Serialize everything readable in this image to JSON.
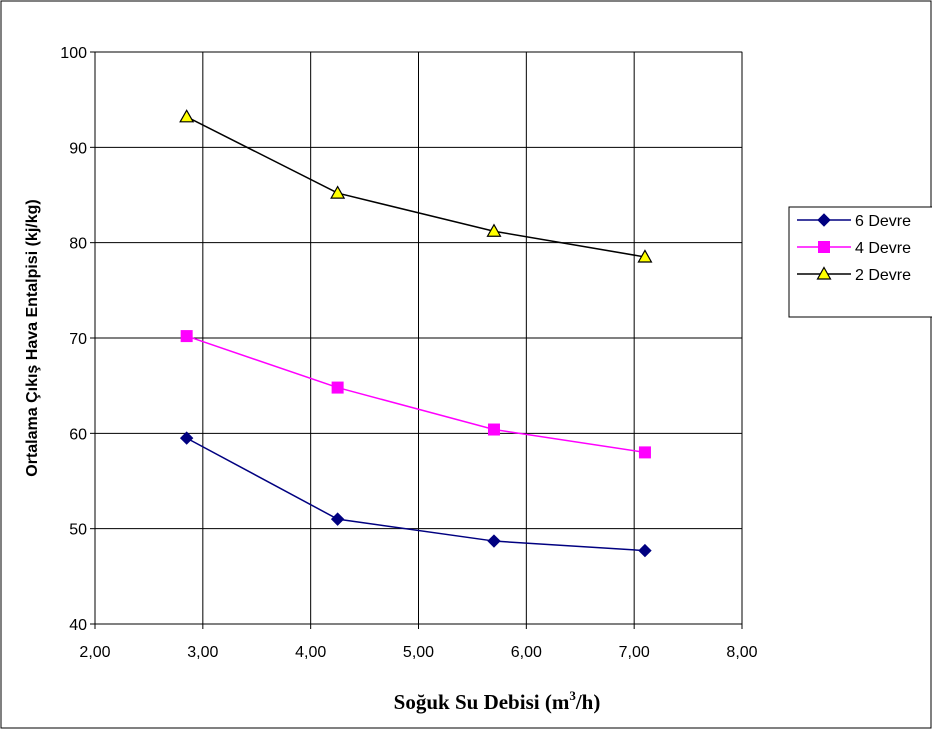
{
  "chart_data": {
    "type": "line",
    "title": "",
    "xlabel": "Soğuk Su Debisi (m3/h)",
    "xlabel_parts": {
      "before": "Soğuk Su Debisi (m",
      "sup": "3",
      "after": "/h)"
    },
    "ylabel": "Ortalama Çıkış Hava Entalpisi (kj/kg)",
    "xlim": [
      2,
      8
    ],
    "ylim": [
      40,
      100
    ],
    "x_ticks": [
      "2,00",
      "3,00",
      "4,00",
      "5,00",
      "6,00",
      "7,00",
      "8,00"
    ],
    "y_ticks": [
      "40",
      "50",
      "60",
      "70",
      "80",
      "90",
      "100"
    ],
    "grid": true,
    "legend_position": "right",
    "x": [
      2.85,
      4.25,
      5.7,
      7.1
    ],
    "series": [
      {
        "name": "6 Devre",
        "color": "#000080",
        "marker": "diamond",
        "values": [
          59.5,
          51.0,
          48.7,
          47.7
        ]
      },
      {
        "name": "4 Devre",
        "color": "#ff00ff",
        "marker": "square",
        "values": [
          70.2,
          64.8,
          60.4,
          58.0
        ]
      },
      {
        "name": "2 Devre",
        "color": "#000000",
        "marker": "triangle",
        "marker_fill": "#ffff00",
        "values": [
          93.2,
          85.2,
          81.2,
          78.5
        ]
      }
    ]
  }
}
